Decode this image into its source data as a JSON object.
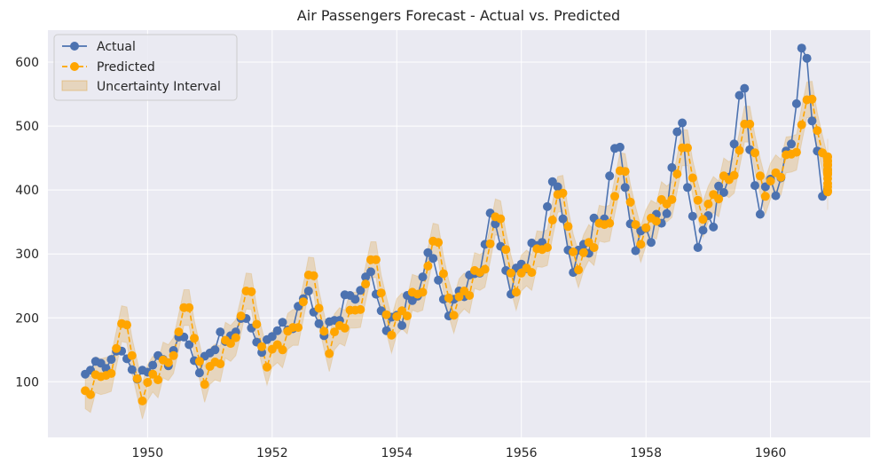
{
  "chart_data": {
    "type": "line",
    "title": "Air Passengers Forecast - Actual vs. Predicted",
    "xlabel": "",
    "ylabel": "",
    "xlim": [
      1948.4,
      1961.6
    ],
    "ylim": [
      13,
      650
    ],
    "x_ticks": [
      1950,
      1952,
      1954,
      1956,
      1958,
      1960
    ],
    "y_ticks": [
      100,
      200,
      300,
      400,
      500,
      600
    ],
    "grid": true,
    "legend_position": "top-left",
    "x_start": 1949.0,
    "x_step": 0.08333,
    "series": [
      {
        "name": "Actual",
        "color": "#4c72b0",
        "marker": "circle",
        "line_style": "solid",
        "values": [
          112,
          118,
          132,
          129,
          121,
          135,
          148,
          148,
          136,
          119,
          104,
          118,
          115,
          126,
          141,
          135,
          125,
          149,
          170,
          170,
          158,
          133,
          114,
          140,
          145,
          150,
          178,
          163,
          172,
          178,
          199,
          199,
          184,
          162,
          146,
          166,
          171,
          180,
          193,
          181,
          183,
          218,
          230,
          242,
          209,
          191,
          172,
          194,
          196,
          196,
          236,
          235,
          229,
          243,
          264,
          272,
          237,
          211,
          180,
          201,
          204,
          188,
          235,
          227,
          234,
          264,
          302,
          293,
          259,
          229,
          203,
          229,
          242,
          233,
          267,
          269,
          270,
          315,
          364,
          347,
          312,
          274,
          237,
          278,
          284,
          277,
          317,
          313,
          318,
          374,
          413,
          405,
          355,
          306,
          271,
          306,
          315,
          301,
          356,
          348,
          355,
          422,
          465,
          467,
          404,
          347,
          305,
          336,
          340,
          318,
          362,
          348,
          363,
          435,
          491,
          505,
          404,
          359,
          310,
          337,
          360,
          342,
          406,
          396,
          420,
          472,
          548,
          559,
          463,
          407,
          362,
          405,
          417,
          391,
          419,
          461,
          472,
          535,
          622,
          606,
          508,
          461,
          390,
          432
        ]
      },
      {
        "name": "Predicted",
        "color": "#ffa500",
        "marker": "circle",
        "line_style": "dashed",
        "values": [
          86,
          80,
          111,
          108,
          110,
          113,
          152,
          191,
          189,
          141,
          105,
          70,
          99,
          112,
          103,
          134,
          130,
          141,
          178,
          216,
          216,
          168,
          132,
          96,
          124,
          131,
          128,
          165,
          160,
          169,
          203,
          242,
          241,
          190,
          155,
          123,
          151,
          158,
          150,
          179,
          185,
          185,
          225,
          267,
          266,
          215,
          179,
          144,
          178,
          188,
          184,
          212,
          212,
          213,
          253,
          291,
          291,
          239,
          205,
          173,
          202,
          211,
          203,
          240,
          237,
          240,
          281,
          320,
          318,
          269,
          231,
          204,
          233,
          242,
          235,
          274,
          271,
          276,
          316,
          358,
          355,
          307,
          270,
          240,
          270,
          278,
          271,
          308,
          307,
          310,
          353,
          393,
          395,
          343,
          303,
          275,
          302,
          318,
          310,
          348,
          346,
          348,
          390,
          430,
          429,
          381,
          346,
          315,
          341,
          356,
          351,
          385,
          378,
          385,
          425,
          466,
          466,
          419,
          384,
          354,
          378,
          393,
          386,
          422,
          416,
          423,
          462,
          503,
          503,
          458,
          422,
          390,
          414,
          427,
          420,
          455,
          456,
          459,
          502,
          541,
          542,
          493,
          458,
          424,
          428,
          432,
          438,
          445,
          452,
          405,
          397,
          410,
          418,
          426,
          432,
          440,
          446,
          452,
          399
        ]
      },
      {
        "name": "Uncertainty Interval",
        "color": "#dda544",
        "marker": "none",
        "line_style": "band",
        "half_width": 28
      }
    ]
  }
}
